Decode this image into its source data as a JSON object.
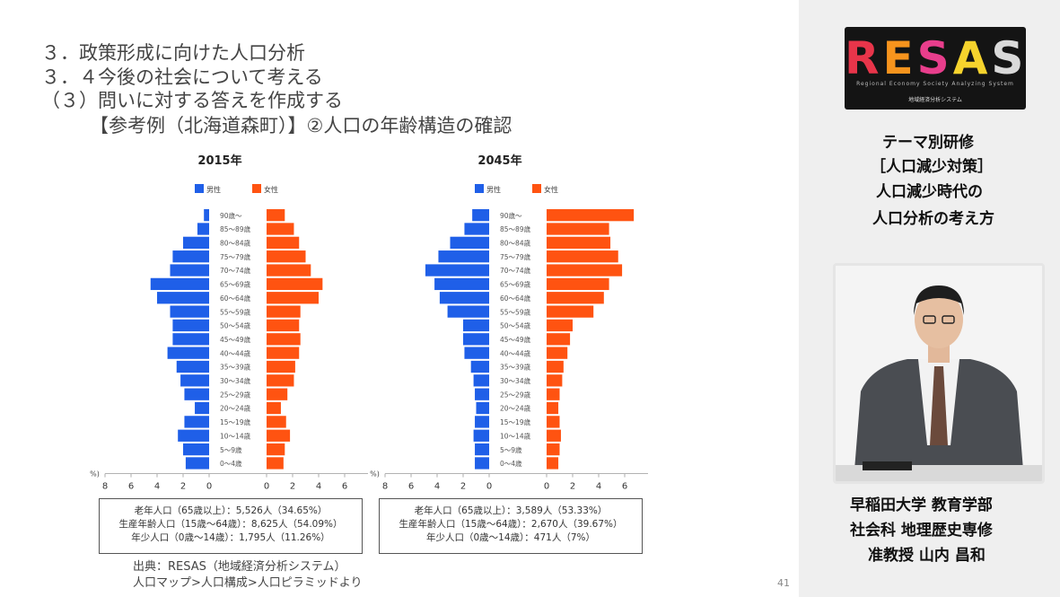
{
  "slide": {
    "headings": [
      "３．政策形成に向けた人口分析",
      "３．４今後の社会について考える",
      "（３）問いに対する答えを作成する",
      "【参考例（北海道森町）】②人口の年齢構造の確認"
    ],
    "source_lines": [
      "出典：RESAS（地域経済分析システム）",
      "人口マップ>人口構成>人口ピラミッドより"
    ],
    "page_number": "41",
    "colors": {
      "male": "#1f5fe8",
      "female": "#ff5311"
    }
  },
  "chart_data": [
    {
      "type": "bar",
      "title": "2015年",
      "legend": [
        "男性",
        "女性"
      ],
      "legend_placement": "top",
      "axis_unit": "(%)",
      "x_ticks": [
        "8",
        "6",
        "4",
        "2",
        "0",
        "0",
        "2",
        "4",
        "6",
        "8"
      ],
      "xlim": [
        0,
        8
      ],
      "categories": [
        "90歳～",
        "85～89歳",
        "80～84歳",
        "75～79歳",
        "70～74歳",
        "65～69歳",
        "60～64歳",
        "55～59歳",
        "50～54歳",
        "45～49歳",
        "40～44歳",
        "35～39歳",
        "30～34歳",
        "25～29歳",
        "20～24歳",
        "15～19歳",
        "10～14歳",
        "5～9歳",
        "0～4歳"
      ],
      "series": [
        {
          "name": "男性",
          "values": [
            0.4,
            0.9,
            2.0,
            2.8,
            3.0,
            4.5,
            4.0,
            3.0,
            2.8,
            2.8,
            3.2,
            2.5,
            2.2,
            1.9,
            1.1,
            1.9,
            2.4,
            2.0,
            1.8
          ]
        },
        {
          "name": "女性",
          "values": [
            1.4,
            2.1,
            2.5,
            3.0,
            3.4,
            4.3,
            4.0,
            2.6,
            2.5,
            2.6,
            2.5,
            2.2,
            2.1,
            1.6,
            1.1,
            1.5,
            1.8,
            1.4,
            1.3
          ]
        }
      ],
      "stats": [
        "老年人口（65歳以上）：5,526人（34.65%）",
        "生産年齢人口（15歳〜64歳）：8,625人（54.09%）",
        "年少人口（0歳〜14歳）：1,795人（11.26%）"
      ]
    },
    {
      "type": "bar",
      "title": "2045年",
      "legend": [
        "男性",
        "女性"
      ],
      "legend_placement": "top",
      "axis_unit": "(%)",
      "x_ticks": [
        "8",
        "6",
        "4",
        "2",
        "0",
        "0",
        "2",
        "4",
        "6",
        "8"
      ],
      "xlim": [
        0,
        8
      ],
      "categories": [
        "90歳～",
        "85～89歳",
        "80～84歳",
        "75～79歳",
        "70～74歳",
        "65～69歳",
        "60～64歳",
        "55～59歳",
        "50～54歳",
        "45～49歳",
        "40～44歳",
        "35～39歳",
        "30～34歳",
        "25～29歳",
        "20～24歳",
        "15～19歳",
        "10～14歳",
        "5～9歳",
        "0～4歳"
      ],
      "series": [
        {
          "name": "男性",
          "values": [
            1.3,
            1.9,
            3.0,
            3.9,
            4.9,
            4.2,
            3.8,
            3.2,
            2.0,
            2.0,
            1.9,
            1.4,
            1.2,
            1.1,
            1.0,
            1.1,
            1.2,
            1.1,
            1.1
          ]
        },
        {
          "name": "女性",
          "values": [
            6.7,
            4.8,
            4.9,
            5.5,
            5.8,
            4.8,
            4.4,
            3.6,
            2.0,
            1.8,
            1.6,
            1.3,
            1.2,
            1.0,
            0.9,
            1.0,
            1.1,
            1.0,
            0.9
          ]
        }
      ],
      "stats": [
        "老年人口（65歳以上）：3,589人（53.33%）",
        "生産年齢人口（15歳〜64歳）：2,670人（39.67%）",
        "年少人口（0歳〜14歳）：471人（7%）"
      ]
    }
  ],
  "panel": {
    "logo": {
      "title": "RESAS",
      "subtitle": "Regional Economy Society Analyzing System",
      "tagline": "地域経済分析システム"
    },
    "theme_lines": [
      "テーマ別研修",
      "［人口減少対策］",
      "人口減少時代の",
      "人口分析の考え方"
    ],
    "speaker_lines": [
      "早稲田大学 教育学部",
      "社会科 地理歴史専修",
      "准教授 山内 昌和"
    ]
  }
}
